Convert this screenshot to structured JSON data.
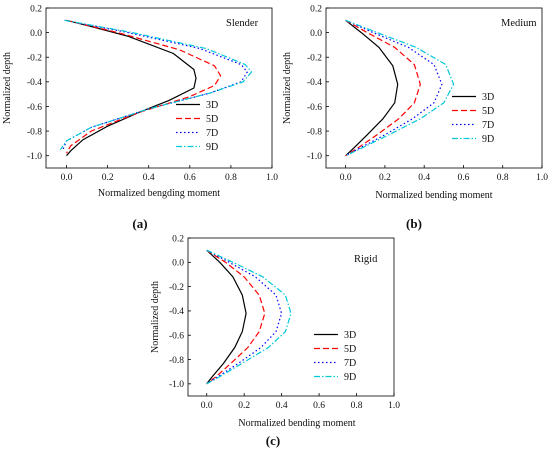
{
  "panels": [
    {
      "caption": "(a)",
      "title": "Slender",
      "xlabel": "Normalized bengding moment",
      "ylabel": "Normalized depth",
      "xlim": [
        -0.1,
        1.0
      ],
      "ylim": [
        -1.1,
        0.2
      ],
      "xticks": [
        "0.0",
        "0.2",
        "0.4",
        "0.6",
        "0.8",
        "1.0"
      ],
      "yticks": [
        "0.2",
        "0.0",
        "-0.2",
        "-0.4",
        "-0.6",
        "-0.8",
        "-1.0"
      ],
      "legend_position": "bottom-right"
    },
    {
      "caption": "(b)",
      "title": "Medium",
      "xlabel": "Normalized bending moment",
      "ylabel": "Normalized depth",
      "xlim": [
        -0.1,
        1.0
      ],
      "ylim": [
        -1.1,
        0.2
      ],
      "xticks": [
        "0.0",
        "0.2",
        "0.4",
        "0.6",
        "0.8",
        "1.0"
      ],
      "yticks": [
        "0.2",
        "0.0",
        "-0.2",
        "-0.4",
        "-0.6",
        "-0.8",
        "-1.0"
      ],
      "legend_position": "bottom-right"
    },
    {
      "caption": "(c)",
      "title": "Rigid",
      "xlabel": "Normalized bending moment",
      "ylabel": "Normalized depth",
      "xlim": [
        -0.1,
        1.0
      ],
      "ylim": [
        -1.1,
        0.2
      ],
      "xticks": [
        "0.0",
        "0.2",
        "0.4",
        "0.6",
        "0.8",
        "1.0"
      ],
      "yticks": [
        "0.2",
        "0.0",
        "-0.2",
        "-0.4",
        "-0.6",
        "-0.8",
        "-1.0"
      ],
      "legend_position": "bottom-right"
    }
  ],
  "legend_styles": [
    {
      "name": "3D",
      "color": "#000000",
      "dash": ""
    },
    {
      "name": "5D",
      "color": "#ff0000",
      "dash": "6,3"
    },
    {
      "name": "7D",
      "color": "#0000ff",
      "dash": "1.5,2.5"
    },
    {
      "name": "9D",
      "color": "#00c8d8",
      "dash": "6,2,1.5,2"
    }
  ],
  "chart_data": [
    {
      "type": "line",
      "title": "Slender",
      "xlabel": "Normalized bengding moment",
      "ylabel": "Normalized depth",
      "xlim": [
        -0.1,
        1.0
      ],
      "ylim": [
        -1.1,
        0.2
      ],
      "series": [
        {
          "name": "3D",
          "x": [
            0.0,
            0.12,
            0.3,
            0.52,
            0.62,
            0.63,
            0.62,
            0.5,
            0.35,
            0.2,
            0.08,
            0.02,
            0.0
          ],
          "y": [
            0.1,
            0.05,
            -0.03,
            -0.17,
            -0.3,
            -0.37,
            -0.45,
            -0.55,
            -0.65,
            -0.76,
            -0.87,
            -0.96,
            -1.0
          ]
        },
        {
          "name": "5D",
          "x": [
            0.0,
            0.25,
            0.55,
            0.72,
            0.75,
            0.72,
            0.6,
            0.35,
            0.12,
            0.02,
            0.0
          ],
          "y": [
            0.1,
            0.0,
            -0.14,
            -0.27,
            -0.35,
            -0.43,
            -0.52,
            -0.65,
            -0.8,
            -0.92,
            -0.98
          ]
        },
        {
          "name": "7D",
          "x": [
            -0.01,
            0.3,
            0.65,
            0.85,
            0.88,
            0.85,
            0.7,
            0.4,
            0.12,
            0.0,
            -0.02
          ],
          "y": [
            0.1,
            0.0,
            -0.13,
            -0.26,
            -0.32,
            -0.4,
            -0.49,
            -0.62,
            -0.77,
            -0.88,
            -0.96
          ]
        },
        {
          "name": "9D",
          "x": [
            -0.01,
            0.32,
            0.68,
            0.87,
            0.9,
            0.86,
            0.7,
            0.4,
            0.12,
            0.0,
            -0.03
          ],
          "y": [
            0.1,
            0.0,
            -0.13,
            -0.26,
            -0.32,
            -0.4,
            -0.49,
            -0.62,
            -0.77,
            -0.88,
            -0.95
          ]
        }
      ]
    },
    {
      "type": "line",
      "title": "Medium",
      "xlabel": "Normalized bending moment",
      "ylabel": "Normalized depth",
      "xlim": [
        -0.1,
        1.0
      ],
      "ylim": [
        -1.1,
        0.2
      ],
      "series": [
        {
          "name": "3D",
          "x": [
            0.0,
            0.08,
            0.17,
            0.24,
            0.265,
            0.25,
            0.19,
            0.11,
            0.04,
            0.0
          ],
          "y": [
            0.1,
            0.0,
            -0.12,
            -0.27,
            -0.42,
            -0.57,
            -0.7,
            -0.83,
            -0.94,
            -1.0
          ]
        },
        {
          "name": "5D",
          "x": [
            0.0,
            0.11,
            0.25,
            0.35,
            0.38,
            0.35,
            0.27,
            0.16,
            0.06,
            0.0
          ],
          "y": [
            0.1,
            0.0,
            -0.12,
            -0.26,
            -0.42,
            -0.57,
            -0.7,
            -0.83,
            -0.94,
            -1.0
          ]
        },
        {
          "name": "7D",
          "x": [
            0.0,
            0.14,
            0.32,
            0.45,
            0.49,
            0.45,
            0.34,
            0.2,
            0.07,
            0.0
          ],
          "y": [
            0.1,
            0.0,
            -0.12,
            -0.26,
            -0.42,
            -0.57,
            -0.7,
            -0.83,
            -0.94,
            -1.0
          ]
        },
        {
          "name": "9D",
          "x": [
            0.0,
            0.16,
            0.36,
            0.51,
            0.55,
            0.5,
            0.38,
            0.22,
            0.08,
            0.0
          ],
          "y": [
            0.1,
            0.0,
            -0.12,
            -0.26,
            -0.42,
            -0.57,
            -0.7,
            -0.83,
            -0.94,
            -1.0
          ]
        }
      ]
    },
    {
      "type": "line",
      "title": "Rigid",
      "xlabel": "Normalized bending moment",
      "ylabel": "Normalized depth",
      "xlim": [
        -0.1,
        1.0
      ],
      "ylim": [
        -1.1,
        0.2
      ],
      "series": [
        {
          "name": "3D",
          "x": [
            0.0,
            0.07,
            0.14,
            0.19,
            0.21,
            0.19,
            0.15,
            0.09,
            0.03,
            0.0
          ],
          "y": [
            0.1,
            0.0,
            -0.12,
            -0.27,
            -0.42,
            -0.57,
            -0.7,
            -0.83,
            -0.94,
            -1.0
          ]
        },
        {
          "name": "5D",
          "x": [
            0.0,
            0.1,
            0.2,
            0.28,
            0.31,
            0.28,
            0.22,
            0.13,
            0.05,
            0.0
          ],
          "y": [
            0.1,
            0.0,
            -0.12,
            -0.27,
            -0.42,
            -0.57,
            -0.7,
            -0.83,
            -0.94,
            -1.0
          ]
        },
        {
          "name": "7D",
          "x": [
            0.0,
            0.12,
            0.26,
            0.37,
            0.4,
            0.37,
            0.29,
            0.17,
            0.06,
            0.0
          ],
          "y": [
            0.1,
            0.0,
            -0.12,
            -0.27,
            -0.42,
            -0.57,
            -0.7,
            -0.83,
            -0.94,
            -1.0
          ]
        },
        {
          "name": "9D",
          "x": [
            0.0,
            0.14,
            0.3,
            0.42,
            0.45,
            0.42,
            0.33,
            0.19,
            0.07,
            0.0
          ],
          "y": [
            0.1,
            0.0,
            -0.12,
            -0.27,
            -0.42,
            -0.57,
            -0.7,
            -0.83,
            -0.94,
            -1.0
          ]
        }
      ]
    }
  ]
}
